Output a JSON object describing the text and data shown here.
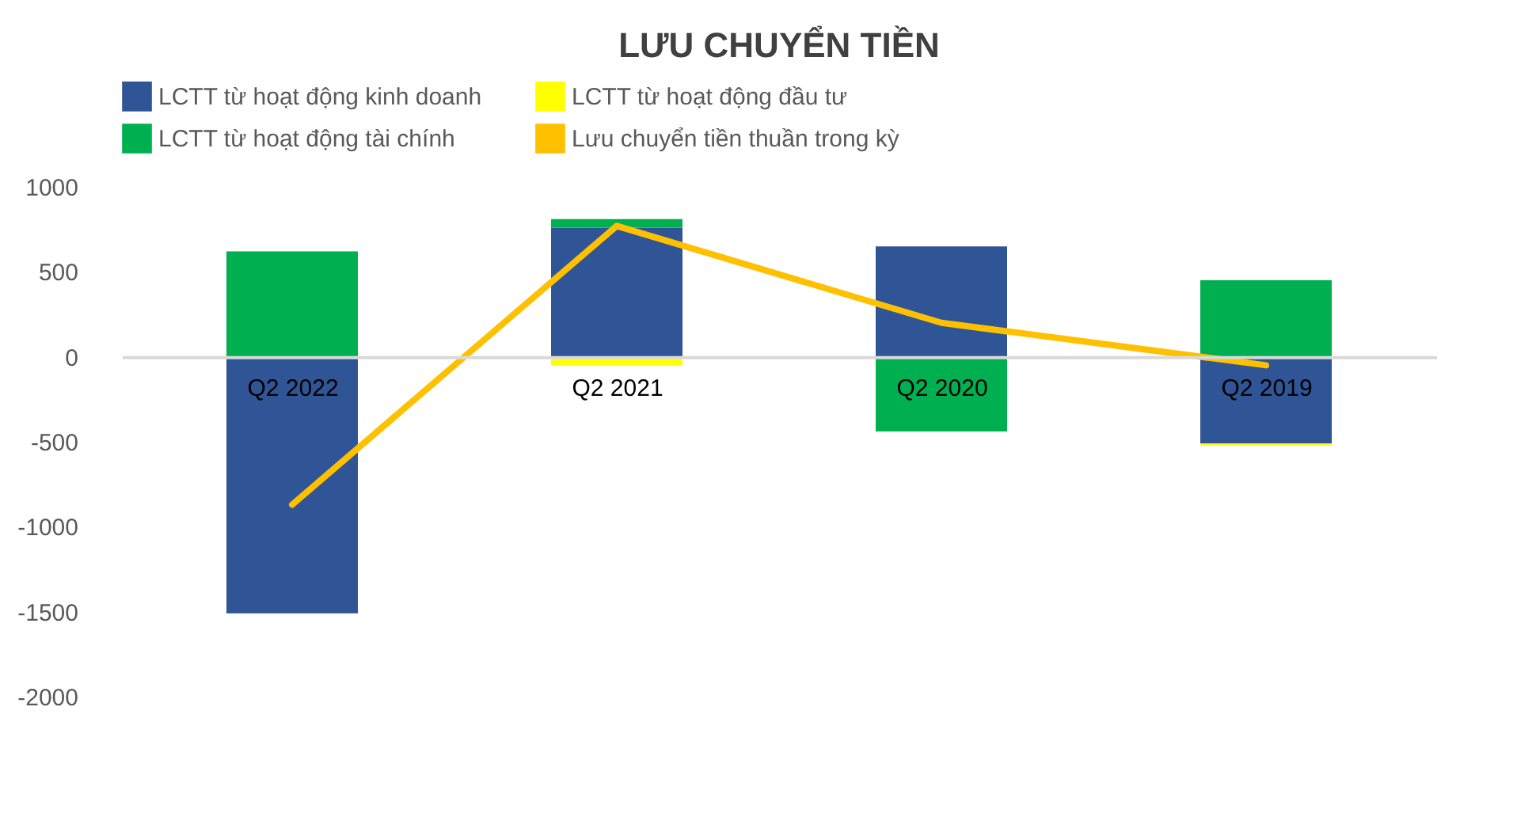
{
  "chart_data": {
    "type": "bar",
    "title": "LƯU CHUYỂN TIỀN",
    "stacked": true,
    "categories": [
      "Q2 2022",
      "Q2 2021",
      "Q2 2020",
      "Q2 2019"
    ],
    "series": [
      {
        "name": "LCTT từ hoạt động kinh doanh",
        "color": "#2f5597",
        "values": [
          -1510,
          760,
          650,
          -510
        ]
      },
      {
        "name": "LCTT từ hoạt động đầu tư",
        "color": "#ffff00",
        "values": [
          0,
          -50,
          0,
          -10
        ]
      },
      {
        "name": "LCTT từ hoạt động tài chính",
        "color": "#00b050",
        "values": [
          620,
          50,
          -440,
          450
        ]
      },
      {
        "name": "Lưu chuyển tiền thuần trong kỳ",
        "color": "#ffc000",
        "type": "line",
        "values": [
          -870,
          770,
          200,
          -50
        ]
      }
    ],
    "ylim": [
      -2000,
      1000
    ],
    "yticks": [
      -2000,
      -1500,
      -1000,
      -500,
      0,
      500,
      1000
    ],
    "grid": false,
    "legend": "top"
  }
}
